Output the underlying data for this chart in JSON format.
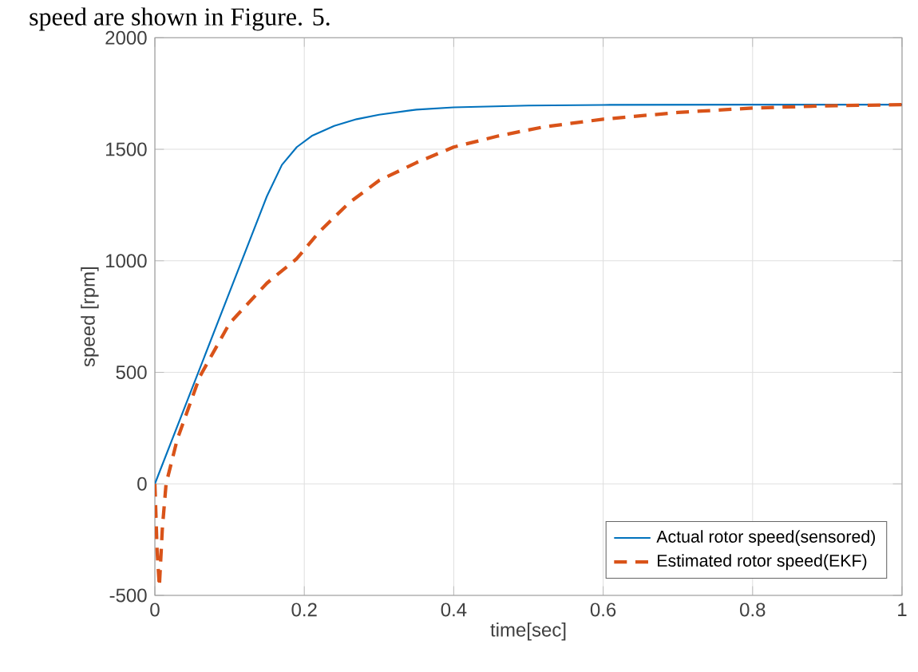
{
  "chart_data": {
    "type": "line",
    "xlabel": "time[sec]",
    "ylabel": "speed [rpm]",
    "annotations": [
      "speed are shown in Figure. 5."
    ],
    "xlim": [
      0,
      1
    ],
    "ylim": [
      -500,
      2000
    ],
    "xticks": [
      0,
      0.2,
      0.4,
      0.6,
      0.8,
      1
    ],
    "yticks": [
      -500,
      0,
      500,
      1000,
      1500,
      2000
    ],
    "grid": true,
    "legend": "bottom right",
    "marker": "none",
    "series": [
      {
        "name": "Actual rotor speed(sensored)",
        "color": "#0072bd",
        "line_style": "solid",
        "x": [
          0,
          0.05,
          0.1,
          0.15,
          0.17,
          0.19,
          0.21,
          0.24,
          0.27,
          0.3,
          0.35,
          0.4,
          0.5,
          0.6,
          0.8,
          1
        ],
        "values": [
          0,
          430,
          860,
          1290,
          1430,
          1510,
          1560,
          1605,
          1635,
          1655,
          1678,
          1688,
          1696,
          1699,
          1700,
          1700
        ]
      },
      {
        "name": "Estimated rotor speed(EKF)",
        "color": "#d95319",
        "line_style": "dashed",
        "x": [
          0,
          0.003,
          0.006,
          0.01,
          0.015,
          0.03,
          0.06,
          0.1,
          0.15,
          0.19,
          0.22,
          0.26,
          0.3,
          0.35,
          0.4,
          0.46,
          0.52,
          0.6,
          0.7,
          0.8,
          0.9,
          1
        ],
        "values": [
          0,
          -300,
          -460,
          -200,
          0,
          200,
          480,
          720,
          900,
          1010,
          1130,
          1260,
          1360,
          1440,
          1510,
          1560,
          1600,
          1635,
          1665,
          1685,
          1695,
          1700
        ]
      }
    ]
  }
}
